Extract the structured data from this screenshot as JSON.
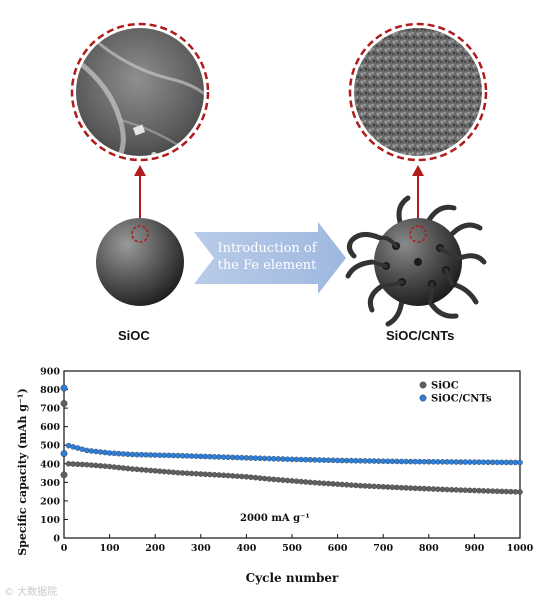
{
  "schematic": {
    "arrow_text_line1": "Introduction of",
    "arrow_text_line2": "the Fe element",
    "left_label": "SiOC",
    "right_label": "SiOC/CNTs"
  },
  "chart_data": {
    "type": "scatter",
    "xlabel": "Cycle number",
    "ylabel": "Specific capacity (mAh g⁻¹)",
    "xlim": [
      0,
      1000
    ],
    "ylim": [
      0,
      900
    ],
    "xticks": [
      0,
      100,
      200,
      300,
      400,
      500,
      600,
      700,
      800,
      900,
      1000
    ],
    "yticks": [
      0,
      100,
      200,
      300,
      400,
      500,
      600,
      700,
      800,
      900
    ],
    "annotation": "2000 mA g⁻¹",
    "legend_position": "top-right",
    "grid": false,
    "series": [
      {
        "name": "SiOC",
        "color": "#606060",
        "initial_points": [
          [
            0,
            725
          ],
          [
            0,
            340
          ]
        ],
        "x": [
          10,
          50,
          100,
          150,
          200,
          250,
          300,
          350,
          400,
          450,
          500,
          550,
          600,
          650,
          700,
          750,
          800,
          850,
          900,
          950,
          1000
        ],
        "y": [
          400,
          395,
          385,
          372,
          362,
          352,
          345,
          338,
          330,
          318,
          308,
          298,
          290,
          282,
          276,
          270,
          265,
          260,
          256,
          252,
          248
        ]
      },
      {
        "name": "SiOC/CNTs",
        "color": "#2f7ed8",
        "initial_points": [
          [
            0,
            808
          ],
          [
            0,
            455
          ]
        ],
        "x": [
          10,
          50,
          100,
          150,
          200,
          250,
          300,
          350,
          400,
          450,
          500,
          550,
          600,
          650,
          700,
          750,
          800,
          850,
          900,
          950,
          1000
        ],
        "y": [
          498,
          472,
          458,
          450,
          447,
          444,
          440,
          436,
          432,
          428,
          424,
          421,
          418,
          416,
          414,
          412,
          411,
          410,
          409,
          408,
          407
        ]
      }
    ]
  },
  "watermark": "© 大数据院"
}
